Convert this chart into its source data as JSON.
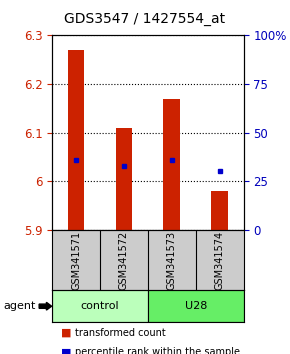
{
  "title": "GDS3547 / 1427554_at",
  "samples": [
    "GSM341571",
    "GSM341572",
    "GSM341573",
    "GSM341574"
  ],
  "bar_bottoms": [
    5.9,
    5.9,
    5.9,
    5.9
  ],
  "bar_tops": [
    6.27,
    6.11,
    6.17,
    5.98
  ],
  "bar_color": "#cc2200",
  "dot_values": [
    6.045,
    6.032,
    6.045,
    6.022
  ],
  "dot_color": "#0000cc",
  "ylim": [
    5.9,
    6.3
  ],
  "yticks_left": [
    5.9,
    6.0,
    6.1,
    6.2,
    6.3
  ],
  "yticks_left_labels": [
    "5.9",
    "6",
    "6.1",
    "6.2",
    "6.3"
  ],
  "yticks_right": [
    0,
    25,
    50,
    75,
    100
  ],
  "yticks_right_labels": [
    "0",
    "25",
    "50",
    "75",
    "100%"
  ],
  "left_tick_color": "#cc2200",
  "right_tick_color": "#0000bb",
  "groups": [
    {
      "label": "control",
      "indices": [
        0,
        1
      ],
      "color": "#bbffbb"
    },
    {
      "label": "U28",
      "indices": [
        2,
        3
      ],
      "color": "#66ee66"
    }
  ],
  "agent_label": "agent",
  "legend": [
    {
      "color": "#cc2200",
      "label": "transformed count"
    },
    {
      "color": "#0000cc",
      "label": "percentile rank within the sample"
    }
  ],
  "bar_width": 0.35,
  "background_color": "#ffffff",
  "sample_box_color": "#cccccc",
  "title_fontsize": 10,
  "tick_fontsize": 8.5,
  "sample_fontsize": 7,
  "group_fontsize": 8,
  "legend_fontsize": 7
}
